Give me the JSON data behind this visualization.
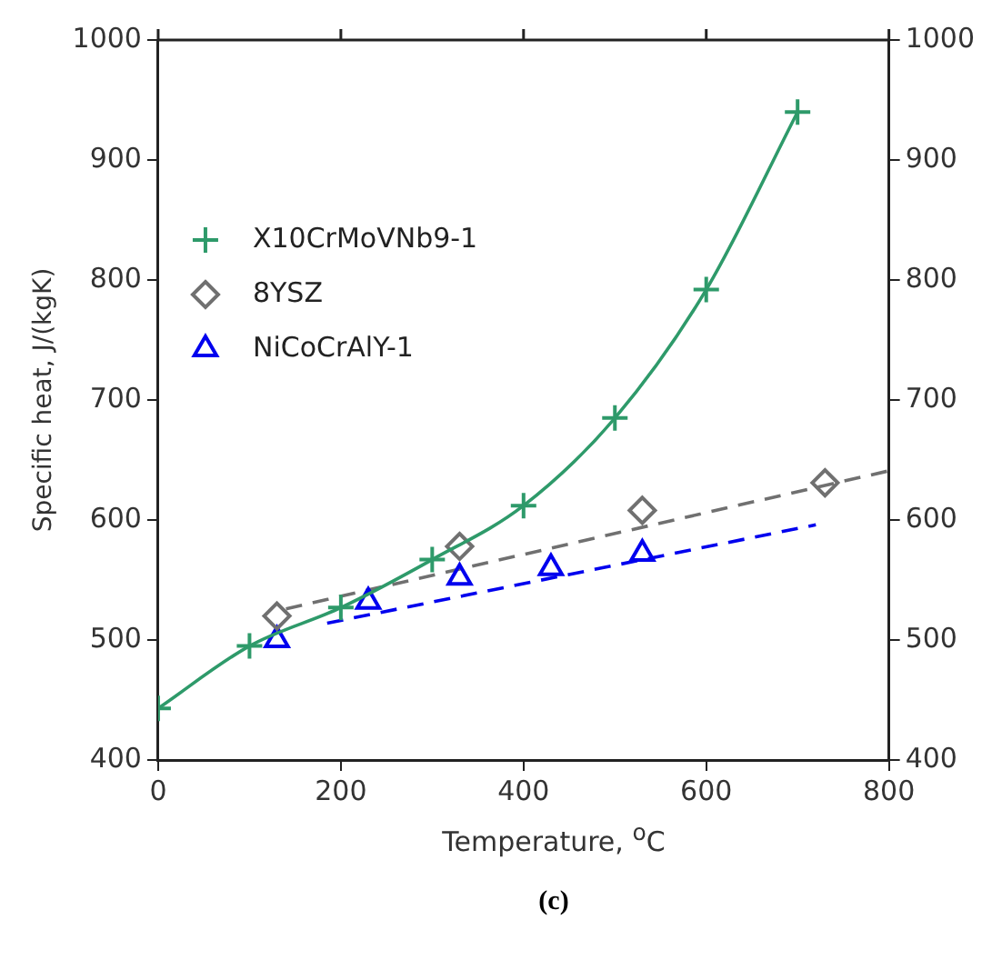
{
  "chart_data": {
    "type": "line",
    "xlabel": "Temperature, $^{o}$C",
    "ylabel": "Specific heat, J/(kgK)",
    "annotations": [
      "(c)"
    ],
    "xlim": [
      0,
      800
    ],
    "xticks": [
      0,
      200,
      400,
      600,
      800
    ],
    "ylim": [
      400,
      1000
    ],
    "yticks": [
      400,
      500,
      600,
      700,
      800,
      900,
      1000
    ],
    "y2lim": [
      400,
      1000
    ],
    "y2ticks": [
      400,
      500,
      600,
      700,
      800,
      900,
      1000
    ],
    "grid": false,
    "legend": "top left",
    "series": [
      {
        "name": "X10CrMoVNb9-1",
        "color": "#2e9a6a",
        "marker": "cross",
        "line_style": "solid",
        "x": [
          0,
          100,
          200,
          300,
          400,
          500,
          600,
          700
        ],
        "values": [
          443,
          495,
          527,
          567,
          612,
          685,
          792,
          940
        ]
      },
      {
        "name": "8YSZ",
        "type": "scatter",
        "color": "#707070",
        "marker": "diamond",
        "x": [
          130,
          330,
          530,
          730
        ],
        "values": [
          520,
          578,
          608,
          631
        ]
      },
      {
        "name": "NiCoCrAlY-1",
        "type": "scatter",
        "color": "#0000ee",
        "marker": "triangle",
        "x": [
          130,
          230,
          330,
          430,
          530
        ],
        "values": [
          500,
          532,
          552,
          560,
          572
        ]
      },
      {
        "color": "#707070",
        "marker": "none",
        "line_style": "dashed",
        "x": [
          140,
          800
        ],
        "values": [
          526,
          641
        ]
      },
      {
        "color": "#0000ee",
        "marker": "none",
        "line_style": "dashed",
        "x": [
          185,
          720
        ],
        "values": [
          514,
          596
        ]
      }
    ]
  }
}
